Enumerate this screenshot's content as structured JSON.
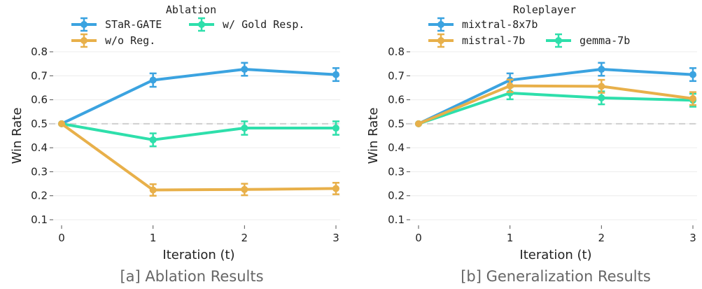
{
  "chart_data": [
    {
      "type": "line",
      "caption": "[a] Ablation Results",
      "legend_title": "Ablation",
      "xlabel": "Iteration (t)",
      "ylabel": "Win Rate",
      "x": [
        0,
        1,
        2,
        3
      ],
      "xticks": [
        "0",
        "1",
        "2",
        "3"
      ],
      "ylim": [
        0.1,
        0.8
      ],
      "yticks": [
        "0.1",
        "0.2",
        "0.3",
        "0.4",
        "0.5",
        "0.6",
        "0.7",
        "0.8"
      ],
      "reference_line": 0.5,
      "series": [
        {
          "name": "STaR-GATE",
          "color": "#3ba3e0",
          "values": [
            0.5,
            0.682,
            0.727,
            0.705
          ],
          "errors": [
            0,
            0.028,
            0.027,
            0.027
          ]
        },
        {
          "name": "w/ Gold Resp.",
          "color": "#2edfab",
          "values": [
            0.5,
            0.433,
            0.482,
            0.482
          ],
          "errors": [
            0,
            0.027,
            0.028,
            0.028
          ]
        },
        {
          "name": "w/o Reg.",
          "color": "#e8b04a",
          "values": [
            0.5,
            0.224,
            0.226,
            0.23
          ],
          "errors": [
            0,
            0.024,
            0.024,
            0.024
          ]
        }
      ]
    },
    {
      "type": "line",
      "caption": "[b] Generalization Results",
      "legend_title": "Roleplayer",
      "xlabel": "Iteration (t)",
      "ylabel": "Win Rate",
      "x": [
        0,
        1,
        2,
        3
      ],
      "xticks": [
        "0",
        "1",
        "2",
        "3"
      ],
      "ylim": [
        0.1,
        0.8
      ],
      "yticks": [
        "0.1",
        "0.2",
        "0.3",
        "0.4",
        "0.5",
        "0.6",
        "0.7",
        "0.8"
      ],
      "reference_line": 0.5,
      "series": [
        {
          "name": "mixtral-8x7b",
          "color": "#3ba3e0",
          "values": [
            0.5,
            0.682,
            0.727,
            0.705
          ],
          "errors": [
            0,
            0.028,
            0.027,
            0.027
          ]
        },
        {
          "name": "gemma-7b",
          "color": "#2edfab",
          "values": [
            0.5,
            0.628,
            0.608,
            0.598
          ],
          "errors": [
            0,
            0.026,
            0.027,
            0.027
          ]
        },
        {
          "name": "mistral-7b",
          "color": "#e8b04a",
          "values": [
            0.5,
            0.658,
            0.656,
            0.605
          ],
          "errors": [
            0,
            0.026,
            0.027,
            0.027
          ]
        }
      ]
    }
  ]
}
